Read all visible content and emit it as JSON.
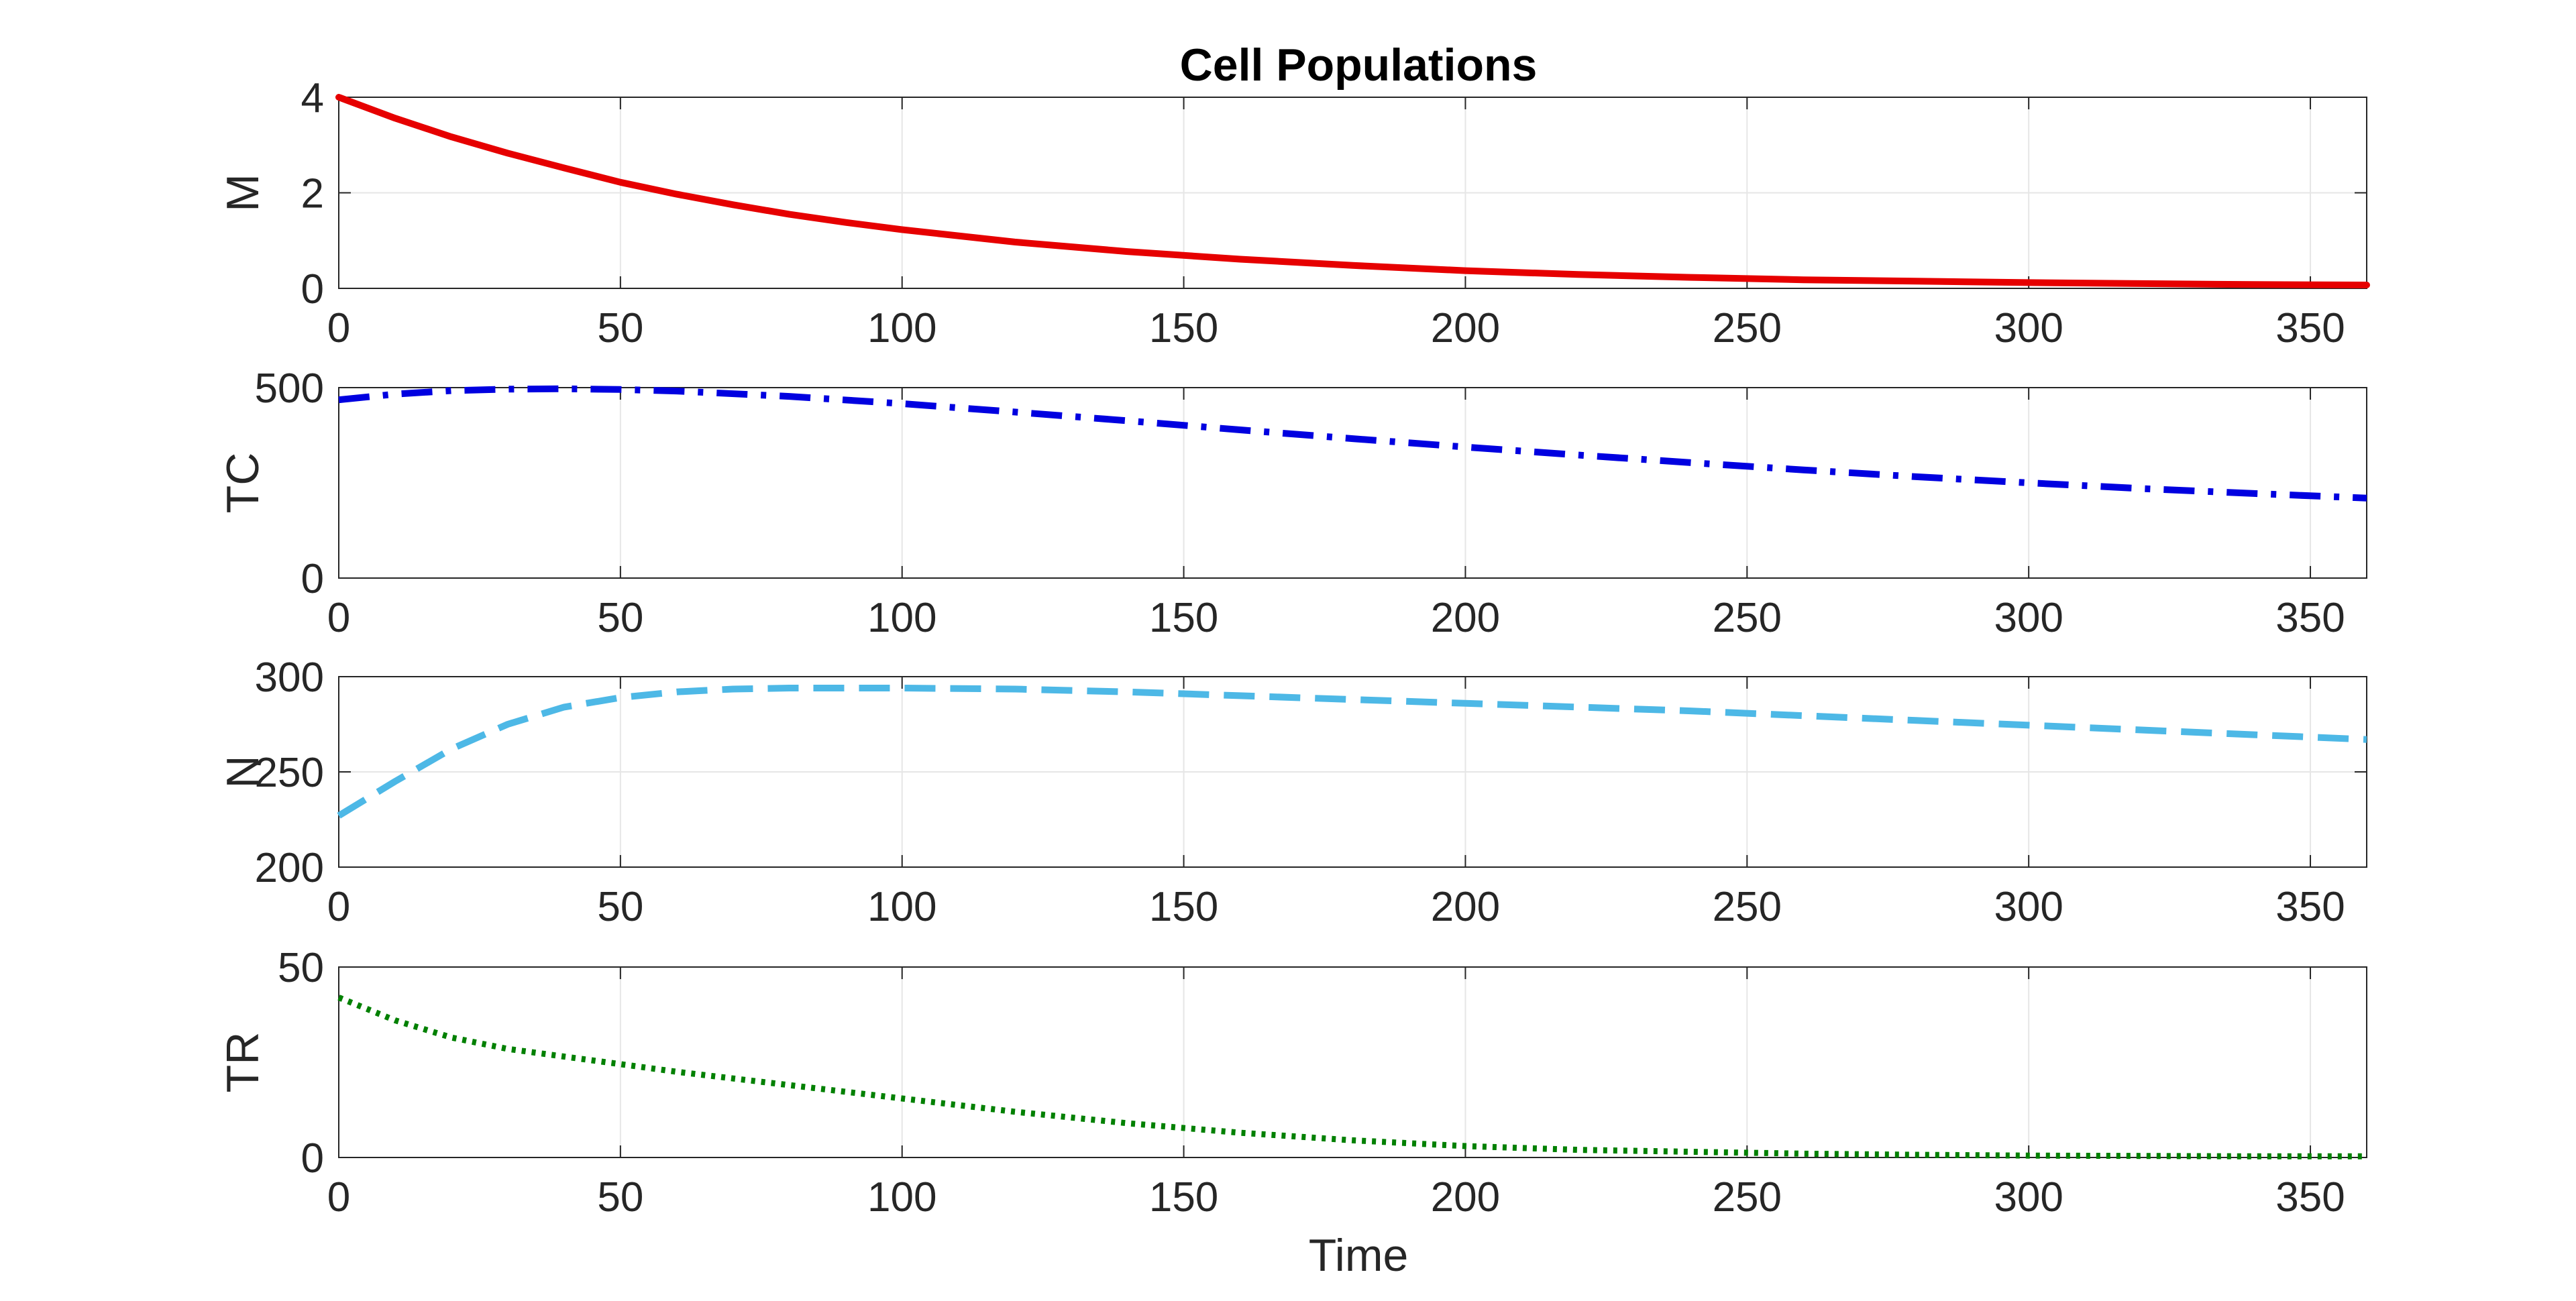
{
  "chart_data": {
    "type": "line",
    "title": "Cell Populations",
    "xlabel": "Time",
    "xlim": [
      0,
      360
    ],
    "x_ticks": [
      "0",
      "50",
      "100",
      "150",
      "200",
      "250",
      "300",
      "350"
    ],
    "x_tick_values": [
      0,
      50,
      100,
      150,
      200,
      250,
      300,
      350
    ],
    "grid": true,
    "subplots": [
      {
        "ylabel": "M",
        "ylim": [
          0,
          4
        ],
        "y_ticks": [
          "0",
          "2",
          "4"
        ],
        "y_tick_values": [
          0,
          2,
          4
        ],
        "series": {
          "name": "M",
          "color": "#e60000",
          "style": "solid",
          "x": [
            0,
            10,
            20,
            30,
            40,
            50,
            60,
            70,
            80,
            90,
            100,
            120,
            140,
            160,
            180,
            200,
            220,
            240,
            260,
            280,
            300,
            320,
            340,
            360
          ],
          "y": [
            4.0,
            3.56,
            3.17,
            2.83,
            2.52,
            2.22,
            1.97,
            1.75,
            1.55,
            1.38,
            1.23,
            0.97,
            0.77,
            0.61,
            0.48,
            0.37,
            0.29,
            0.23,
            0.18,
            0.15,
            0.12,
            0.1,
            0.08,
            0.07
          ]
        }
      },
      {
        "ylabel": "TC",
        "ylim": [
          0,
          500
        ],
        "y_ticks": [
          "0",
          "500"
        ],
        "y_tick_values": [
          0,
          500
        ],
        "series": {
          "name": "TC",
          "color": "#0000e0",
          "style": "dashdot",
          "x": [
            0,
            10,
            20,
            30,
            40,
            50,
            60,
            80,
            100,
            120,
            140,
            160,
            180,
            200,
            220,
            240,
            260,
            280,
            300,
            320,
            340,
            360
          ],
          "y": [
            468,
            483,
            492,
            496,
            497,
            495,
            491,
            477,
            458,
            436,
            413,
            389,
            366,
            344,
            323,
            303,
            284,
            266,
            250,
            235,
            222,
            210
          ]
        }
      },
      {
        "ylabel": "N",
        "ylim": [
          200,
          300
        ],
        "y_ticks": [
          "200",
          "250",
          "300"
        ],
        "y_tick_values": [
          200,
          250,
          300
        ],
        "series": {
          "name": "N",
          "color": "#4db8e6",
          "style": "dashed",
          "x": [
            0,
            10,
            20,
            30,
            40,
            50,
            60,
            70,
            80,
            100,
            120,
            140,
            160,
            180,
            200,
            220,
            240,
            260,
            280,
            300,
            320,
            340,
            360
          ],
          "y": [
            227,
            245,
            262,
            275,
            284,
            289,
            292,
            293.5,
            294,
            294,
            293.5,
            292,
            290,
            288,
            286,
            284,
            282,
            279.5,
            277,
            274.5,
            272,
            269.5,
            267
          ]
        }
      },
      {
        "ylabel": "TR",
        "ylim": [
          0,
          50
        ],
        "y_ticks": [
          "0",
          "50"
        ],
        "y_tick_values": [
          0,
          50
        ],
        "series": {
          "name": "TR",
          "color": "#008000",
          "style": "dotted",
          "x": [
            0,
            10,
            20,
            30,
            40,
            50,
            60,
            80,
            100,
            120,
            140,
            160,
            180,
            200,
            220,
            240,
            260,
            280,
            300,
            320,
            340,
            360
          ],
          "y": [
            42,
            36,
            31.5,
            28.5,
            26.5,
            24.5,
            22.5,
            19,
            15.5,
            12,
            9,
            6.5,
            4.5,
            3,
            2,
            1.5,
            1,
            0.7,
            0.5,
            0.4,
            0.3,
            0.3
          ]
        }
      }
    ]
  }
}
